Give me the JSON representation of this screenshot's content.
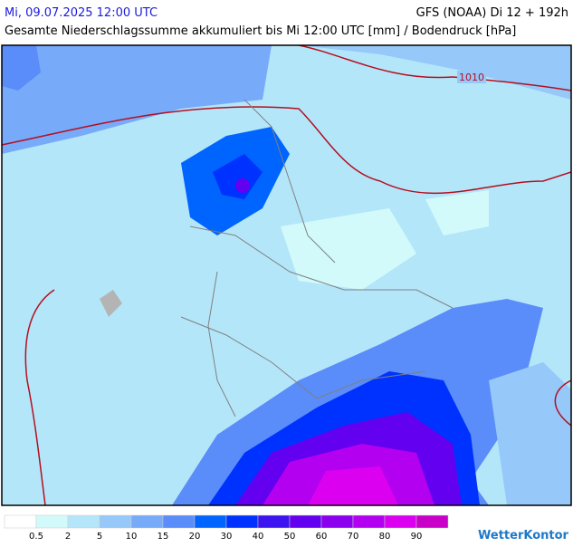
{
  "header": {
    "valid_time": "Mi, 09.07.2025 12:00 UTC",
    "model": "GFS (NOAA) Di 12 + 192h",
    "subtitle": "Gesamte Niederschlagssumme akkumuliert bis Mi 12:00 UTC [mm] / Bodendruck [hPa]"
  },
  "map": {
    "isobar_labels": [
      "1010"
    ]
  },
  "legend": {
    "ticks": [
      0.5,
      2,
      5,
      10,
      15,
      20,
      30,
      40,
      50,
      60,
      70,
      80,
      90
    ],
    "colors": [
      "#ffffff",
      "#d2fafa",
      "#b4e6fa",
      "#96c8fa",
      "#78aafa",
      "#5a8cfa",
      "#0064ff",
      "#0032ff",
      "#3c14f0",
      "#6400f0",
      "#8c00f0",
      "#b400f0",
      "#dc00f0",
      "#c800c8"
    ]
  },
  "logo": "WetterKontor"
}
